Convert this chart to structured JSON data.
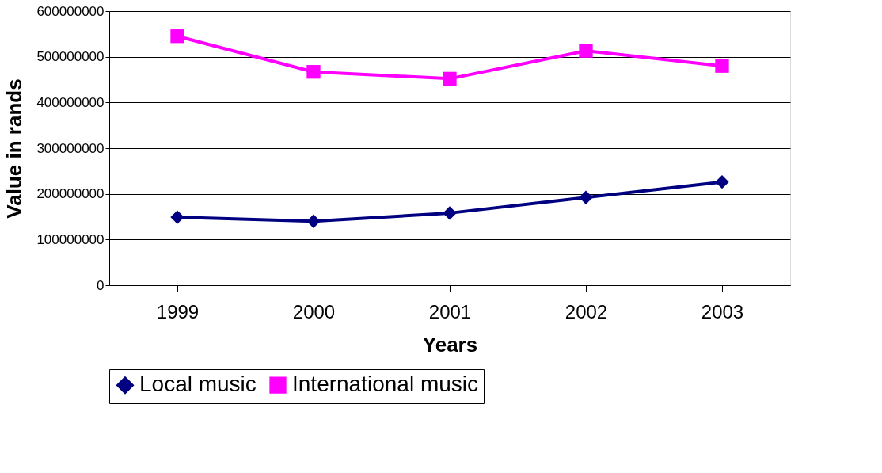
{
  "chart_data": {
    "type": "line",
    "xlabel": "Years",
    "ylabel": "Value in rands",
    "categories": [
      "1999",
      "2000",
      "2001",
      "2002",
      "2003"
    ],
    "series": [
      {
        "name": "Local music",
        "color": "#000080",
        "marker": "diamond",
        "values": [
          149000000,
          140000000,
          158000000,
          192000000,
          226000000
        ]
      },
      {
        "name": "International music",
        "color": "#ff00ff",
        "marker": "square",
        "values": [
          545000000,
          467000000,
          452000000,
          513000000,
          480000000
        ]
      }
    ],
    "ylim": [
      0,
      600000000
    ],
    "yticks": [
      0,
      100000000,
      200000000,
      300000000,
      400000000,
      500000000,
      600000000
    ],
    "grid": "y",
    "legend": "bottom",
    "line_style": "solid"
  }
}
